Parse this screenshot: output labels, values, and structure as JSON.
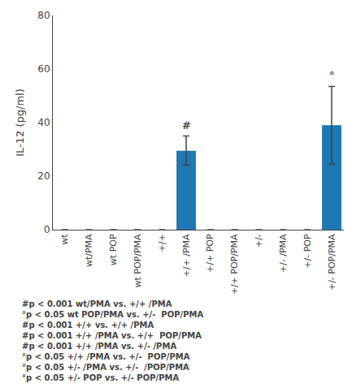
{
  "chart_data": {
    "type": "bar",
    "categories": [
      "wt",
      "wt/PMA",
      "wt POP",
      "wt POP/PMA",
      "+/+",
      "+/+ /PMA",
      "+/+ POP",
      "+/+ POP/PMA",
      "+/-",
      "+/- /PMA",
      "+/- POP",
      "+/- POP/PMA"
    ],
    "values": [
      0,
      0,
      0,
      0,
      0,
      29.5,
      0,
      0,
      0,
      0,
      0,
      39.0
    ],
    "errors": [
      0,
      0,
      0,
      0,
      0,
      5.5,
      0,
      0,
      0,
      0,
      0,
      14.5
    ],
    "ylabel": "IL-12 (pg/ml)",
    "ylim": [
      0,
      80
    ],
    "yticks": [
      0,
      20,
      40,
      60,
      80
    ],
    "grid": false,
    "annotations": [
      {
        "category": "+/+ /PMA",
        "text": "#"
      },
      {
        "category": "+/- POP/PMA",
        "text": "°"
      }
    ],
    "footnotes": [
      "#p < 0.001 wt/PMA vs. +/+ /PMA",
      "°p < 0.05 wt POP/PMA vs. +/-  POP/PMA",
      "#p < 0.001 +/+ vs. +/+ /PMA",
      "#p < 0.001 +/+ /PMA vs. +/+  POP/PMA",
      "#p < 0.001 +/+ /PMA vs. +/- /PMA",
      "°p < 0.05 +/+ /PMA vs. +/-  POP/PMA",
      "°p < 0.05 +/- /PMA vs. +/-  /POP/PMA",
      "°p < 0.05 +/- POP vs. +/- POP/PMA"
    ]
  }
}
